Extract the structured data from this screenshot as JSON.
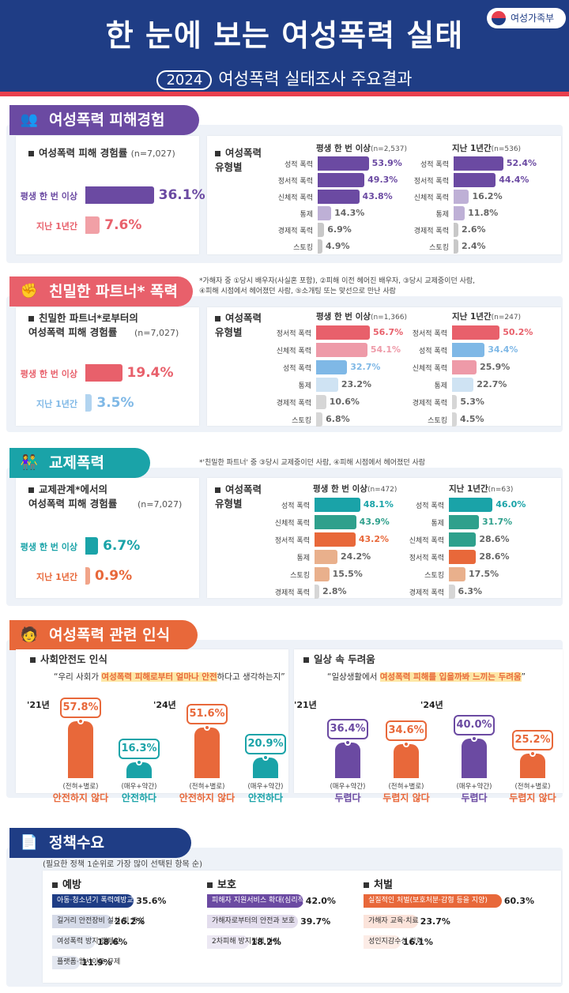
{
  "header": {
    "title": "한 눈에 보는 여성폭력 실태",
    "year": "2024",
    "subtitle": "여성폭력 실태조사 주요결과",
    "ministry": "여성가족부"
  },
  "colors": {
    "navy": "#1f3d85",
    "purple": "#6b4aa2",
    "pink": "#e8606b",
    "teal": "#1aa3a8",
    "orange": "#e8683a"
  },
  "sec1": {
    "tab": "여성폭력 피해경험",
    "rate_label": "여성폭력 피해 경험률",
    "rate_n": "(n=7,027)",
    "types_label": "여성폭력\n유형별",
    "lifetime_label": "평생 한 번 이상",
    "lifetime_value": "36.1%",
    "year_label": "지난 1년간",
    "year_value": "7.6%",
    "left_caption": "평생 한 번 이상",
    "left_n": "(n=2,537)",
    "right_caption": "지난 1년간",
    "right_n": "(n=536)"
  },
  "sec2": {
    "tab": "친밀한 파트너* 폭력",
    "note": "*가해자 중 ①당시 배우자(사실혼 포함), ②피해 이전 헤어진 배우자, ③당시 교제중이던 사람,\n④피해 시점에서 헤어졌던 사람, ⑤소개팅 또는 맞선으로 만난 사람",
    "rate_label": "친밀한 파트너*로부터의\n여성폭력 피해 경험률",
    "rate_n": "(n=7,027)",
    "types_label": "여성폭력\n유형별",
    "lifetime_label": "평생 한 번 이상",
    "lifetime_value": "19.4%",
    "year_label": "지난 1년간",
    "year_value": "3.5%",
    "left_caption": "평생 한 번 이상",
    "left_n": "(n=1,366)",
    "right_caption": "지난 1년간",
    "right_n": "(n=247)"
  },
  "sec3": {
    "tab": "교제폭력",
    "note": "*'친밀한 파트너' 중 ③당시 교제중이던 사람, ④피해 시점에서 헤어졌던 사람",
    "rate_label": "교제관계*에서의\n여성폭력 피해 경험률",
    "rate_n": "(n=7,027)",
    "types_label": "여성폭력\n유형별",
    "lifetime_label": "평생 한 번 이상",
    "lifetime_value": "6.7%",
    "year_label": "지난 1년간",
    "year_value": "0.9%",
    "left_caption": "평생 한 번 이상",
    "left_n": "(n=472)",
    "right_caption": "지난 1년간",
    "right_n": "(n=63)"
  },
  "sec4": {
    "tab": "여성폭력 관련 인식",
    "safety_label": "사회안전도 인식",
    "safety_quote_pre": "“우리 사회가 ",
    "safety_quote_hl": "여성폭력 피해로부터 얼마나 안전",
    "safety_quote_post": "하다고 생각하는지”",
    "fear_label": "일상 속 두려움",
    "fear_quote_pre": "“일상생활에서 ",
    "fear_quote_hl": "여성폭력 피해를 입을까봐 느끼는 두려움",
    "fear_quote_post": "”",
    "y21": "'21년",
    "y24": "'24년"
  },
  "sec5": {
    "tab": "정책수요",
    "note": "(필요한 정책 1순위로 가장 많이 선택된 항목 순)",
    "prev_label": "예방",
    "prot_label": "보호",
    "pun_label": "처벌"
  },
  "chart_data": [
    {
      "type": "bar",
      "title": "여성폭력 피해 경험률 (n=7,027)",
      "categories": [
        "평생 한 번 이상",
        "지난 1년간"
      ],
      "values": [
        36.1,
        7.6
      ],
      "unit": "%"
    },
    {
      "type": "bar",
      "title": "평생 한 번 이상 (n=2,537)",
      "categories": [
        "성적 폭력",
        "정서적 폭력",
        "신체적 폭력",
        "통제",
        "경제적 폭력",
        "스토킹"
      ],
      "values": [
        53.9,
        49.3,
        43.8,
        14.3,
        6.9,
        4.9
      ],
      "unit": "%"
    },
    {
      "type": "bar",
      "title": "지난 1년간 (n=536)",
      "categories": [
        "성적 폭력",
        "정서적 폭력",
        "신체적 폭력",
        "통제",
        "경제적 폭력",
        "스토킹"
      ],
      "values": [
        52.4,
        44.4,
        16.2,
        11.8,
        2.6,
        2.4
      ],
      "unit": "%"
    },
    {
      "type": "bar",
      "title": "친밀한 파트너*로부터의 여성폭력 피해 경험률 (n=7,027)",
      "categories": [
        "평생 한 번 이상",
        "지난 1년간"
      ],
      "values": [
        19.4,
        3.5
      ],
      "unit": "%"
    },
    {
      "type": "bar",
      "title": "평생 한 번 이상 (n=1,366)",
      "categories": [
        "정서적 폭력",
        "신체적 폭력",
        "성적 폭력",
        "통제",
        "경제적 폭력",
        "스토킹"
      ],
      "values": [
        56.7,
        54.1,
        32.7,
        23.2,
        10.6,
        6.8
      ],
      "unit": "%"
    },
    {
      "type": "bar",
      "title": "지난 1년간 (n=247)",
      "categories": [
        "정서적 폭력",
        "성적 폭력",
        "신체적 폭력",
        "통제",
        "경제적 폭력",
        "스토킹"
      ],
      "values": [
        50.2,
        34.4,
        25.9,
        22.7,
        5.3,
        4.5
      ],
      "unit": "%"
    },
    {
      "type": "bar",
      "title": "교제관계*에서의 여성폭력 피해 경험률 (n=7,027)",
      "categories": [
        "평생 한 번 이상",
        "지난 1년간"
      ],
      "values": [
        6.7,
        0.9
      ],
      "unit": "%"
    },
    {
      "type": "bar",
      "title": "평생 한 번 이상 (n=472)",
      "categories": [
        "성적 폭력",
        "신체적 폭력",
        "정서적 폭력",
        "통제",
        "스토킹",
        "경제적 폭력"
      ],
      "values": [
        48.1,
        43.9,
        43.2,
        24.2,
        15.5,
        2.8
      ],
      "unit": "%"
    },
    {
      "type": "bar",
      "title": "지난 1년간 (n=63)",
      "categories": [
        "성적 폭력",
        "통제",
        "신체적 폭력",
        "정서적 폭력",
        "스토킹",
        "경제적 폭력"
      ],
      "values": [
        46.0,
        31.7,
        28.6,
        28.6,
        17.5,
        6.3
      ],
      "unit": "%"
    },
    {
      "type": "bar",
      "title": "사회안전도 인식",
      "groups": [
        {
          "year": "'21년",
          "items": [
            {
              "sub": "(전혀+별로)",
              "name": "안전하지 않다",
              "value": 57.8
            },
            {
              "sub": "(매우+약간)",
              "name": "안전하다",
              "value": 16.3
            }
          ]
        },
        {
          "year": "'24년",
          "items": [
            {
              "sub": "(전혀+별로)",
              "name": "안전하지 않다",
              "value": 51.6
            },
            {
              "sub": "(매우+약간)",
              "name": "안전하다",
              "value": 20.9
            }
          ]
        }
      ],
      "unit": "%"
    },
    {
      "type": "bar",
      "title": "일상 속 두려움",
      "groups": [
        {
          "year": "'21년",
          "items": [
            {
              "sub": "(매우+약간)",
              "name": "두렵다",
              "value": 36.4
            },
            {
              "sub": "(전혀+별로)",
              "name": "두렵지 않다",
              "value": 34.6
            }
          ]
        },
        {
          "year": "'24년",
          "items": [
            {
              "sub": "(매우+약간)",
              "name": "두렵다",
              "value": 40.0
            },
            {
              "sub": "(전혀+별로)",
              "name": "두렵지 않다",
              "value": 25.2
            }
          ]
        }
      ],
      "unit": "%"
    },
    {
      "type": "bar",
      "title": "예방",
      "categories": [
        "아동·청소년기 폭력예방교육",
        "길거리 안전장비 설치 및 증설",
        "여성폭력 방지 캠페인",
        "플랫폼·웹사이트 규제"
      ],
      "values": [
        35.6,
        26.2,
        18.6,
        11.9
      ],
      "unit": "%"
    },
    {
      "type": "bar",
      "title": "보호",
      "categories": [
        "피해자 지원서비스 확대(심리적·법률지원 등)",
        "가해자로부터의 안전과 보호",
        "2차피해 방지정책 마련"
      ],
      "values": [
        42.0,
        39.7,
        18.2
      ],
      "unit": "%"
    },
    {
      "type": "bar",
      "title": "처벌",
      "categories": [
        "실질적인 처벌(보호처분·감형 등을 지양)",
        "가해자 교육·치료",
        "성인지감수성 강화"
      ],
      "values": [
        60.3,
        23.7,
        16.1
      ],
      "unit": "%"
    }
  ]
}
